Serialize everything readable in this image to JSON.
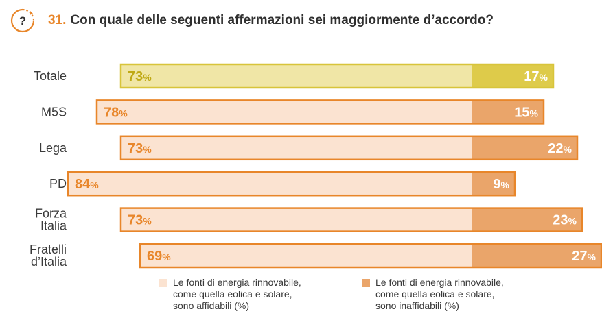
{
  "header": {
    "number": "31.",
    "question": "Con quale delle seguenti affermazioni sei maggiormente d’accordo?",
    "icon": "question-timer-icon",
    "icon_glyph": "?"
  },
  "colors": {
    "accent": "#e8862a",
    "total_light": "#f0e6a6",
    "total_dark": "#decb4a",
    "total_border": "#d8c43a",
    "total_text": "#bfa914",
    "party_light": "#fbe3d1",
    "party_dark": "#eaa56a",
    "party_border": "#e8862a",
    "party_text": "#e8862a",
    "label_text": "#3a3a3a"
  },
  "chart_data": {
    "type": "bar",
    "orientation": "horizontal",
    "stacked": true,
    "categories": [
      "Totale",
      "M5S",
      "Lega",
      "PD",
      "Forza Italia",
      "Fratelli d’Italia"
    ],
    "category_lines": [
      [
        "Totale"
      ],
      [
        "M5S"
      ],
      [
        "Lega"
      ],
      [
        "PD"
      ],
      [
        "Forza",
        "Italia"
      ],
      [
        "Fratelli",
        "d’Italia"
      ]
    ],
    "series": [
      {
        "name": "Le fonti di energia rinnovabile, come quella eolica e solare, sono affidabili (%)",
        "values": [
          73,
          78,
          73,
          84,
          73,
          69
        ]
      },
      {
        "name": "Le fonti di energia rinnovabile, come quella eolica e solare, sono inaffidabili (%)",
        "values": [
          17,
          15,
          22,
          9,
          23,
          27
        ]
      }
    ],
    "value_suffix": "%",
    "legend_position": "bottom"
  },
  "legend": [
    {
      "text": "Le fonti di energia rinnovabile,\ncome quella eolica e solare,\nsono affidabili (%)",
      "color": "#fbe3d1"
    },
    {
      "text": "Le fonti di energia rinnovabile,\ncome quella eolica e solare,\nsono inaffidabili (%)",
      "color": "#eaa56a"
    }
  ]
}
